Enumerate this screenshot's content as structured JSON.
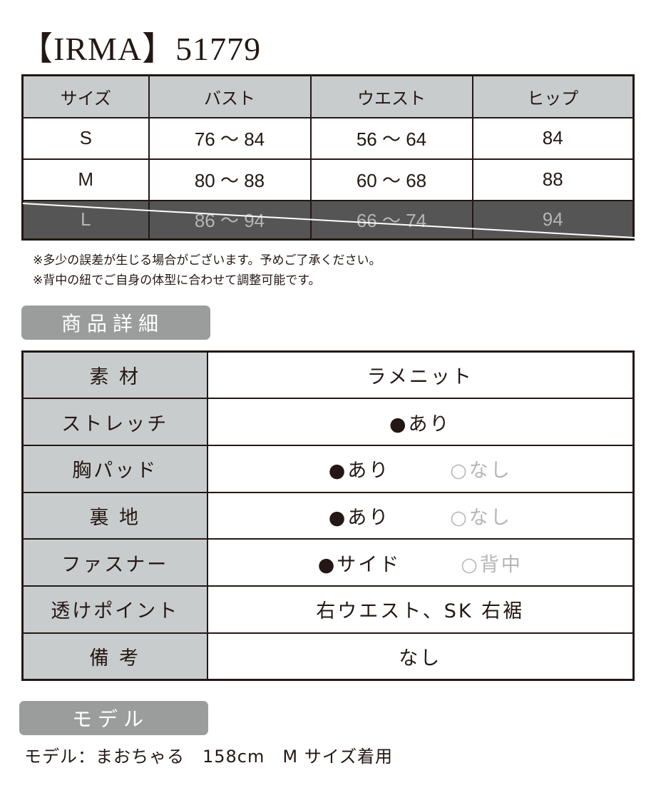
{
  "title": "【IRMA】51779",
  "size_table": {
    "headers": [
      "サイズ",
      "バスト",
      "ウエスト",
      "ヒップ"
    ],
    "rows": [
      {
        "size": "S",
        "bust": "76 〜 84",
        "waist": "56 〜 64",
        "hip": "84",
        "available": true
      },
      {
        "size": "M",
        "bust": "80 〜 88",
        "waist": "60 〜 68",
        "hip": "88",
        "available": true
      },
      {
        "size": "L",
        "bust": "86 〜 94",
        "waist": "66 〜 74",
        "hip": "94",
        "available": false
      }
    ]
  },
  "notes": [
    "※多少の誤差が生じる場合がございます。予めご了承ください。",
    "※背中の紐でご自身の体型に合わせて調整可能です。"
  ],
  "details": {
    "heading": "商品詳細",
    "rows": [
      {
        "label": "素 材",
        "value": "ラメニット"
      },
      {
        "label": "ストレッチ",
        "value": "●あり"
      },
      {
        "label": "胸パッド",
        "selected": "●あり",
        "unselected": "○なし"
      },
      {
        "label": "裏 地",
        "selected": "●あり",
        "unselected": "○なし"
      },
      {
        "label": "ファスナー",
        "selected": "●サイド",
        "unselected": "○背中"
      },
      {
        "label": "透けポイント",
        "value": "右ウエスト、SK 右裾"
      },
      {
        "label": "備 考",
        "value": "なし"
      }
    ]
  },
  "model": {
    "heading": "モデル",
    "text": "モデル：まおちゃる　158cm　M サイズ着用"
  },
  "colors": {
    "header_bg": "#c9cccc",
    "sold_out_bg": "#555555",
    "section_bg": "#9b9d9d",
    "border": "#231815"
  }
}
